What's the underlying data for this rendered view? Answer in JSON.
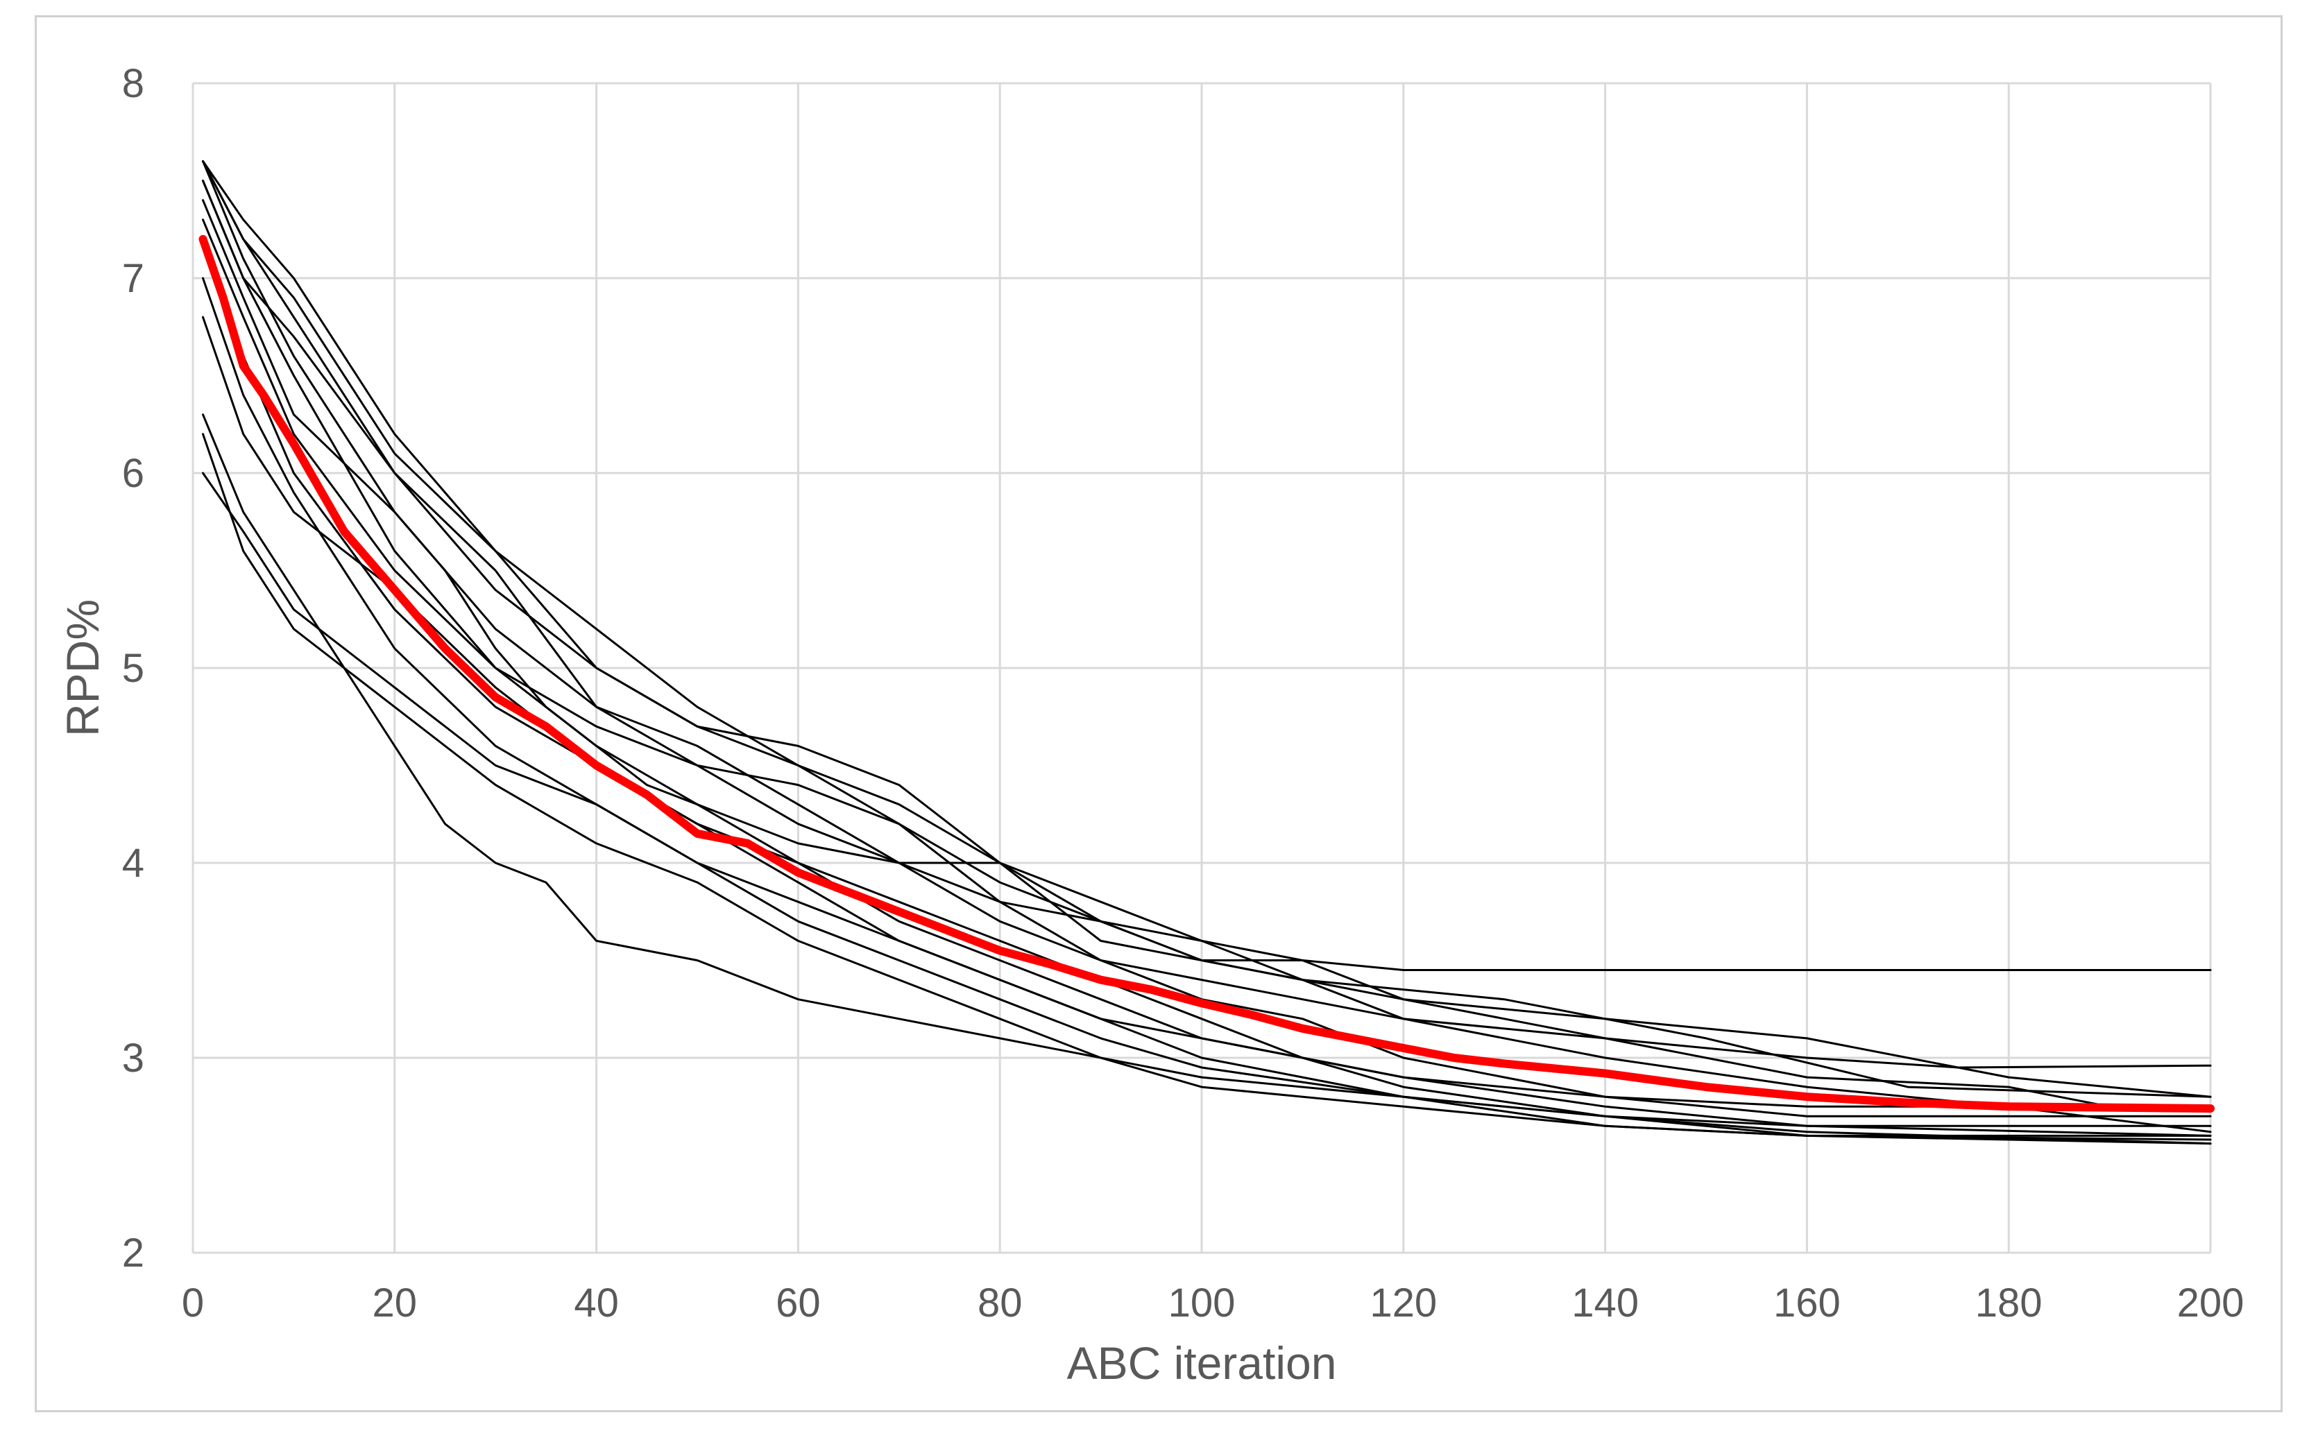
{
  "chart_data": {
    "type": "line",
    "title": "",
    "xlabel": "ABC iteration",
    "ylabel": "RPD%",
    "xlim": [
      0,
      200
    ],
    "ylim": [
      2,
      8
    ],
    "x_ticks": [
      "0",
      "20",
      "40",
      "60",
      "80",
      "100",
      "120",
      "140",
      "160",
      "180",
      "200"
    ],
    "y_ticks": [
      "2",
      "3",
      "4",
      "5",
      "6",
      "7",
      "8"
    ],
    "grid": true,
    "legend": "none",
    "colors": {
      "runs": "#000000",
      "mean": "#ff0000",
      "grid": "#d9d9d9",
      "text": "#595959"
    },
    "series": [
      {
        "role": "run",
        "points": [
          [
            1,
            7.6
          ],
          [
            5,
            7.1
          ],
          [
            10,
            6.6
          ],
          [
            15,
            6.2
          ],
          [
            20,
            5.8
          ],
          [
            25,
            5.5
          ],
          [
            30,
            5.1
          ],
          [
            35,
            4.8
          ],
          [
            40,
            4.6
          ],
          [
            45,
            4.4
          ],
          [
            50,
            4.3
          ],
          [
            60,
            4.1
          ],
          [
            70,
            4.0
          ],
          [
            80,
            4.0
          ],
          [
            90,
            3.6
          ],
          [
            100,
            3.5
          ],
          [
            110,
            3.5
          ],
          [
            120,
            3.45
          ],
          [
            200,
            3.45
          ]
        ]
      },
      {
        "role": "run",
        "points": [
          [
            1,
            7.5
          ],
          [
            5,
            7.0
          ],
          [
            10,
            6.5
          ],
          [
            20,
            5.6
          ],
          [
            30,
            5.0
          ],
          [
            40,
            4.7
          ],
          [
            50,
            4.5
          ],
          [
            60,
            4.4
          ],
          [
            70,
            4.2
          ],
          [
            80,
            3.8
          ],
          [
            90,
            3.5
          ],
          [
            100,
            3.4
          ],
          [
            110,
            3.3
          ],
          [
            120,
            3.2
          ],
          [
            140,
            3.1
          ],
          [
            160,
            3.0
          ],
          [
            175,
            2.95
          ],
          [
            200,
            2.96
          ]
        ]
      },
      {
        "role": "run",
        "points": [
          [
            1,
            7.6
          ],
          [
            5,
            7.2
          ],
          [
            10,
            6.8
          ],
          [
            15,
            6.4
          ],
          [
            20,
            6.0
          ],
          [
            30,
            5.5
          ],
          [
            40,
            4.8
          ],
          [
            50,
            4.6
          ],
          [
            60,
            4.3
          ],
          [
            70,
            4.0
          ],
          [
            80,
            3.8
          ],
          [
            90,
            3.7
          ],
          [
            100,
            3.5
          ],
          [
            110,
            3.4
          ],
          [
            130,
            3.3
          ],
          [
            150,
            3.1
          ],
          [
            170,
            2.85
          ],
          [
            200,
            2.8
          ]
        ]
      },
      {
        "role": "run",
        "points": [
          [
            1,
            6.8
          ],
          [
            5,
            6.2
          ],
          [
            10,
            5.8
          ],
          [
            20,
            5.4
          ],
          [
            30,
            4.9
          ],
          [
            40,
            4.5
          ],
          [
            50,
            4.2
          ],
          [
            60,
            4.0
          ],
          [
            70,
            3.7
          ],
          [
            80,
            3.5
          ],
          [
            90,
            3.3
          ],
          [
            100,
            3.1
          ],
          [
            110,
            3.0
          ],
          [
            120,
            2.9
          ],
          [
            140,
            2.8
          ],
          [
            160,
            2.75
          ],
          [
            200,
            2.75
          ]
        ]
      },
      {
        "role": "run",
        "points": [
          [
            1,
            6.3
          ],
          [
            5,
            5.8
          ],
          [
            10,
            5.4
          ],
          [
            15,
            5.0
          ],
          [
            20,
            4.6
          ],
          [
            25,
            4.2
          ],
          [
            30,
            4.0
          ],
          [
            35,
            3.9
          ],
          [
            40,
            3.6
          ],
          [
            50,
            3.5
          ],
          [
            60,
            3.3
          ],
          [
            70,
            3.2
          ],
          [
            80,
            3.1
          ],
          [
            90,
            3.0
          ],
          [
            100,
            2.9
          ],
          [
            120,
            2.8
          ],
          [
            140,
            2.7
          ],
          [
            160,
            2.65
          ],
          [
            200,
            2.65
          ]
        ]
      },
      {
        "role": "run",
        "points": [
          [
            1,
            6.0
          ],
          [
            5,
            5.7
          ],
          [
            10,
            5.3
          ],
          [
            20,
            4.9
          ],
          [
            30,
            4.5
          ],
          [
            40,
            4.3
          ],
          [
            50,
            4.0
          ],
          [
            60,
            3.7
          ],
          [
            70,
            3.5
          ],
          [
            80,
            3.3
          ],
          [
            90,
            3.1
          ],
          [
            100,
            2.95
          ],
          [
            120,
            2.8
          ],
          [
            140,
            2.65
          ],
          [
            160,
            2.6
          ],
          [
            200,
            2.6
          ]
        ]
      },
      {
        "role": "run",
        "points": [
          [
            1,
            7.4
          ],
          [
            5,
            6.9
          ],
          [
            10,
            6.3
          ],
          [
            20,
            5.8
          ],
          [
            30,
            5.2
          ],
          [
            40,
            4.8
          ],
          [
            50,
            4.5
          ],
          [
            60,
            4.2
          ],
          [
            70,
            4.0
          ],
          [
            80,
            3.7
          ],
          [
            90,
            3.5
          ],
          [
            100,
            3.3
          ],
          [
            110,
            3.2
          ],
          [
            120,
            3.0
          ],
          [
            140,
            2.8
          ],
          [
            160,
            2.7
          ],
          [
            200,
            2.7
          ]
        ]
      },
      {
        "role": "run",
        "points": [
          [
            1,
            7.2
          ],
          [
            5,
            6.6
          ],
          [
            10,
            6.0
          ],
          [
            20,
            5.3
          ],
          [
            30,
            4.8
          ],
          [
            40,
            4.5
          ],
          [
            50,
            4.2
          ],
          [
            60,
            3.9
          ],
          [
            70,
            3.6
          ],
          [
            80,
            3.4
          ],
          [
            90,
            3.2
          ],
          [
            100,
            3.1
          ],
          [
            120,
            2.9
          ],
          [
            140,
            2.75
          ],
          [
            160,
            2.65
          ],
          [
            200,
            2.6
          ]
        ]
      },
      {
        "role": "run",
        "points": [
          [
            1,
            7.6
          ],
          [
            5,
            7.3
          ],
          [
            10,
            7.0
          ],
          [
            15,
            6.6
          ],
          [
            20,
            6.2
          ],
          [
            25,
            5.9
          ],
          [
            30,
            5.6
          ],
          [
            40,
            5.0
          ],
          [
            50,
            4.7
          ],
          [
            60,
            4.5
          ],
          [
            70,
            4.2
          ],
          [
            80,
            3.9
          ],
          [
            90,
            3.7
          ],
          [
            100,
            3.5
          ],
          [
            110,
            3.4
          ],
          [
            120,
            3.3
          ],
          [
            140,
            3.2
          ],
          [
            160,
            3.1
          ],
          [
            180,
            2.9
          ],
          [
            200,
            2.8
          ]
        ]
      },
      {
        "role": "run",
        "points": [
          [
            1,
            7.0
          ],
          [
            5,
            6.4
          ],
          [
            10,
            5.9
          ],
          [
            20,
            5.1
          ],
          [
            30,
            4.6
          ],
          [
            40,
            4.3
          ],
          [
            50,
            4.0
          ],
          [
            60,
            3.8
          ],
          [
            70,
            3.6
          ],
          [
            80,
            3.4
          ],
          [
            90,
            3.2
          ],
          [
            100,
            3.0
          ],
          [
            110,
            2.9
          ],
          [
            120,
            2.8
          ],
          [
            140,
            2.7
          ],
          [
            160,
            2.62
          ],
          [
            200,
            2.56
          ]
        ]
      },
      {
        "role": "run",
        "points": [
          [
            1,
            6.2
          ],
          [
            5,
            5.6
          ],
          [
            10,
            5.2
          ],
          [
            20,
            4.8
          ],
          [
            30,
            4.4
          ],
          [
            40,
            4.1
          ],
          [
            50,
            3.9
          ],
          [
            60,
            3.6
          ],
          [
            70,
            3.4
          ],
          [
            80,
            3.2
          ],
          [
            90,
            3.0
          ],
          [
            100,
            2.85
          ],
          [
            120,
            2.75
          ],
          [
            140,
            2.65
          ],
          [
            160,
            2.6
          ],
          [
            200,
            2.58
          ]
        ]
      },
      {
        "role": "run",
        "points": [
          [
            1,
            7.5
          ],
          [
            5,
            7.0
          ],
          [
            10,
            6.7
          ],
          [
            20,
            6.0
          ],
          [
            30,
            5.4
          ],
          [
            40,
            5.0
          ],
          [
            50,
            4.7
          ],
          [
            60,
            4.6
          ],
          [
            70,
            4.4
          ],
          [
            80,
            4.0
          ],
          [
            90,
            3.8
          ],
          [
            100,
            3.6
          ],
          [
            110,
            3.5
          ],
          [
            120,
            3.3
          ],
          [
            140,
            3.1
          ],
          [
            160,
            2.9
          ],
          [
            180,
            2.85
          ],
          [
            190,
            2.75
          ],
          [
            200,
            2.75
          ]
        ]
      },
      {
        "role": "run",
        "points": [
          [
            1,
            7.3
          ],
          [
            5,
            6.8
          ],
          [
            10,
            6.2
          ],
          [
            20,
            5.5
          ],
          [
            30,
            5.0
          ],
          [
            40,
            4.6
          ],
          [
            50,
            4.3
          ],
          [
            60,
            4.0
          ],
          [
            70,
            3.8
          ],
          [
            80,
            3.6
          ],
          [
            90,
            3.4
          ],
          [
            100,
            3.2
          ],
          [
            110,
            3.0
          ],
          [
            120,
            2.85
          ],
          [
            140,
            2.7
          ],
          [
            160,
            2.6
          ],
          [
            200,
            2.56
          ]
        ]
      },
      {
        "role": "run",
        "points": [
          [
            1,
            7.6
          ],
          [
            5,
            7.2
          ],
          [
            10,
            6.9
          ],
          [
            20,
            6.1
          ],
          [
            30,
            5.6
          ],
          [
            40,
            5.2
          ],
          [
            50,
            4.8
          ],
          [
            60,
            4.5
          ],
          [
            70,
            4.3
          ],
          [
            80,
            4.0
          ],
          [
            90,
            3.7
          ],
          [
            100,
            3.6
          ],
          [
            110,
            3.4
          ],
          [
            120,
            3.2
          ],
          [
            140,
            3.0
          ],
          [
            160,
            2.85
          ],
          [
            180,
            2.75
          ],
          [
            200,
            2.62
          ]
        ]
      },
      {
        "role": "mean",
        "points": [
          [
            1,
            7.2
          ],
          [
            3,
            6.9
          ],
          [
            5,
            6.55
          ],
          [
            7,
            6.4
          ],
          [
            10,
            6.15
          ],
          [
            15,
            5.7
          ],
          [
            20,
            5.4
          ],
          [
            25,
            5.1
          ],
          [
            30,
            4.85
          ],
          [
            35,
            4.7
          ],
          [
            40,
            4.5
          ],
          [
            45,
            4.35
          ],
          [
            50,
            4.15
          ],
          [
            55,
            4.1
          ],
          [
            60,
            3.95
          ],
          [
            65,
            3.85
          ],
          [
            70,
            3.75
          ],
          [
            75,
            3.65
          ],
          [
            80,
            3.55
          ],
          [
            85,
            3.48
          ],
          [
            90,
            3.4
          ],
          [
            95,
            3.35
          ],
          [
            100,
            3.28
          ],
          [
            105,
            3.22
          ],
          [
            110,
            3.15
          ],
          [
            115,
            3.1
          ],
          [
            120,
            3.05
          ],
          [
            125,
            3.0
          ],
          [
            130,
            2.97
          ],
          [
            140,
            2.92
          ],
          [
            150,
            2.85
          ],
          [
            160,
            2.8
          ],
          [
            170,
            2.77
          ],
          [
            180,
            2.75
          ],
          [
            200,
            2.74
          ]
        ]
      }
    ]
  }
}
